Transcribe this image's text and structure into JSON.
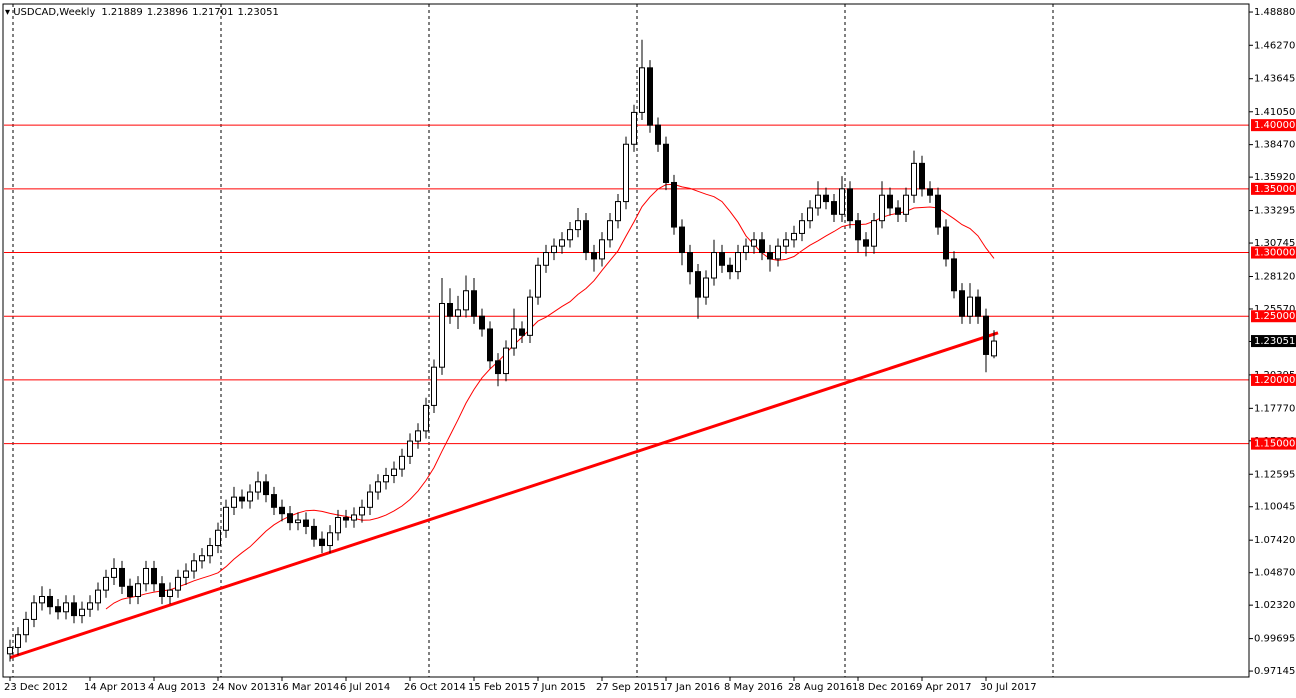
{
  "chart_data": {
    "type": "candlestick",
    "title": "USDCAD,Weekly",
    "ylim": [
      0.9668,
      1.4951
    ],
    "yticks": [
      {
        "value": 1.4888,
        "label": "1.48880"
      },
      {
        "value": 1.4627,
        "label": "1.46270"
      },
      {
        "value": 1.43645,
        "label": "1.43645"
      },
      {
        "value": 1.4105,
        "label": "1.41050"
      },
      {
        "value": 1.3847,
        "label": "1.38470"
      },
      {
        "value": 1.3592,
        "label": "1.35920"
      },
      {
        "value": 1.33295,
        "label": "1.33295"
      },
      {
        "value": 1.30745,
        "label": "1.30745"
      },
      {
        "value": 1.2812,
        "label": "1.28120"
      },
      {
        "value": 1.2557,
        "label": "1.25570"
      },
      {
        "value": 1.2302,
        "label": "1.23020"
      },
      {
        "value": 1.20395,
        "label": "1.20395"
      },
      {
        "value": 1.1777,
        "label": "1.17770"
      },
      {
        "value": 1.1522,
        "label": "1.15220"
      },
      {
        "value": 1.12595,
        "label": "1.12595"
      },
      {
        "value": 1.10045,
        "label": "1.10045"
      },
      {
        "value": 1.0742,
        "label": "1.07420"
      },
      {
        "value": 1.0487,
        "label": "1.04870"
      },
      {
        "value": 1.0232,
        "label": "1.02320"
      },
      {
        "value": 0.99695,
        "label": "0.99695"
      },
      {
        "value": 0.97145,
        "label": "0.97145"
      }
    ],
    "levels": [
      {
        "value": 1.4,
        "label": "1.40000"
      },
      {
        "value": 1.35,
        "label": "1.35000"
      },
      {
        "value": 1.3,
        "label": "1.30000"
      },
      {
        "value": 1.25,
        "label": "1.25000"
      },
      {
        "value": 1.2,
        "label": "1.20000"
      },
      {
        "value": 1.15,
        "label": "1.15000"
      }
    ],
    "level_color": "#ff0000",
    "trendline": {
      "values": [
        0.982,
        1.237
      ],
      "color": "#ff0000"
    },
    "ma_period": 13,
    "ma_color": "#ff0000",
    "categories": [
      "23 Dec 2012",
      null,
      null,
      null,
      null,
      null,
      null,
      null,
      null,
      null,
      "14 Apr 2013",
      null,
      null,
      null,
      null,
      null,
      null,
      null,
      "4 Aug 2013",
      null,
      null,
      null,
      null,
      null,
      null,
      null,
      "24 Nov 2013",
      null,
      null,
      null,
      null,
      null,
      null,
      null,
      "16 Mar 2014",
      null,
      null,
      null,
      null,
      null,
      null,
      null,
      "6 Jul 2014",
      null,
      null,
      null,
      null,
      null,
      null,
      null,
      "26 Oct 2014",
      null,
      null,
      null,
      null,
      null,
      null,
      null,
      "15 Feb 2015",
      null,
      null,
      null,
      null,
      null,
      null,
      null,
      "7 Jun 2015",
      null,
      null,
      null,
      null,
      null,
      null,
      null,
      "27 Sep 2015",
      null,
      null,
      null,
      null,
      null,
      null,
      null,
      "17 Jan 2016",
      null,
      null,
      null,
      null,
      null,
      null,
      null,
      "8 May 2016",
      null,
      null,
      null,
      null,
      null,
      null,
      null,
      "28 Aug 2016",
      null,
      null,
      null,
      null,
      null,
      null,
      null,
      "18 Dec 2016",
      null,
      null,
      null,
      null,
      null,
      null,
      null,
      "9 Apr 2017",
      null,
      null,
      null,
      null,
      null,
      null,
      null,
      "30 Jul 2017",
      null
    ],
    "candles": [
      [
        0.985,
        0.996,
        0.979,
        0.99
      ],
      [
        0.99,
        1.006,
        0.984,
        1.0
      ],
      [
        1.0,
        1.018,
        0.994,
        1.012
      ],
      [
        1.012,
        1.031,
        1.006,
        1.025
      ],
      [
        1.025,
        1.038,
        1.019,
        1.03
      ],
      [
        1.03,
        1.036,
        1.016,
        1.022
      ],
      [
        1.022,
        1.028,
        1.012,
        1.018
      ],
      [
        1.018,
        1.031,
        1.012,
        1.025
      ],
      [
        1.025,
        1.031,
        1.009,
        1.015
      ],
      [
        1.015,
        1.026,
        1.009,
        1.02
      ],
      [
        1.02,
        1.031,
        1.014,
        1.025
      ],
      [
        1.025,
        1.041,
        1.019,
        1.035
      ],
      [
        1.035,
        1.051,
        1.029,
        1.045
      ],
      [
        1.045,
        1.06,
        1.039,
        1.052
      ],
      [
        1.052,
        1.058,
        1.032,
        1.038
      ],
      [
        1.038,
        1.044,
        1.024,
        1.03
      ],
      [
        1.03,
        1.046,
        1.024,
        1.04
      ],
      [
        1.04,
        1.058,
        1.034,
        1.052
      ],
      [
        1.052,
        1.058,
        1.034,
        1.04
      ],
      [
        1.04,
        1.046,
        1.024,
        1.03
      ],
      [
        1.03,
        1.041,
        1.024,
        1.035
      ],
      [
        1.035,
        1.051,
        1.029,
        1.045
      ],
      [
        1.045,
        1.056,
        1.039,
        1.05
      ],
      [
        1.05,
        1.064,
        1.044,
        1.058
      ],
      [
        1.058,
        1.068,
        1.052,
        1.062
      ],
      [
        1.062,
        1.076,
        1.056,
        1.07
      ],
      [
        1.07,
        1.088,
        1.064,
        1.082
      ],
      [
        1.082,
        1.106,
        1.076,
        1.1
      ],
      [
        1.1,
        1.116,
        1.094,
        1.108
      ],
      [
        1.108,
        1.114,
        1.099,
        1.105
      ],
      [
        1.105,
        1.118,
        1.099,
        1.112
      ],
      [
        1.112,
        1.128,
        1.106,
        1.12
      ],
      [
        1.12,
        1.126,
        1.104,
        1.11
      ],
      [
        1.11,
        1.116,
        1.094,
        1.1
      ],
      [
        1.1,
        1.106,
        1.089,
        1.095
      ],
      [
        1.095,
        1.101,
        1.082,
        1.088
      ],
      [
        1.088,
        1.096,
        1.082,
        1.09
      ],
      [
        1.09,
        1.096,
        1.079,
        1.085
      ],
      [
        1.085,
        1.091,
        1.069,
        1.075
      ],
      [
        1.075,
        1.081,
        1.064,
        1.07
      ],
      [
        1.07,
        1.086,
        1.064,
        1.08
      ],
      [
        1.08,
        1.098,
        1.074,
        1.092
      ],
      [
        1.092,
        1.098,
        1.084,
        1.09
      ],
      [
        1.09,
        1.1,
        1.084,
        1.094
      ],
      [
        1.094,
        1.106,
        1.088,
        1.1
      ],
      [
        1.1,
        1.118,
        1.094,
        1.112
      ],
      [
        1.112,
        1.126,
        1.106,
        1.12
      ],
      [
        1.12,
        1.131,
        1.114,
        1.125
      ],
      [
        1.125,
        1.136,
        1.119,
        1.13
      ],
      [
        1.13,
        1.146,
        1.124,
        1.14
      ],
      [
        1.14,
        1.158,
        1.134,
        1.152
      ],
      [
        1.152,
        1.166,
        1.146,
        1.16
      ],
      [
        1.16,
        1.186,
        1.154,
        1.18
      ],
      [
        1.18,
        1.216,
        1.174,
        1.21
      ],
      [
        1.21,
        1.28,
        1.204,
        1.26
      ],
      [
        1.26,
        1.272,
        1.244,
        1.25
      ],
      [
        1.25,
        1.266,
        1.24,
        1.255
      ],
      [
        1.255,
        1.282,
        1.249,
        1.27
      ],
      [
        1.27,
        1.28,
        1.244,
        1.25
      ],
      [
        1.25,
        1.256,
        1.234,
        1.24
      ],
      [
        1.24,
        1.246,
        1.209,
        1.215
      ],
      [
        1.215,
        1.221,
        1.195,
        1.205
      ],
      [
        1.205,
        1.231,
        1.199,
        1.225
      ],
      [
        1.225,
        1.256,
        1.219,
        1.24
      ],
      [
        1.24,
        1.246,
        1.229,
        1.235
      ],
      [
        1.235,
        1.271,
        1.229,
        1.265
      ],
      [
        1.265,
        1.296,
        1.259,
        1.29
      ],
      [
        1.29,
        1.306,
        1.284,
        1.3
      ],
      [
        1.3,
        1.311,
        1.294,
        1.305
      ],
      [
        1.305,
        1.316,
        1.299,
        1.31
      ],
      [
        1.31,
        1.324,
        1.304,
        1.318
      ],
      [
        1.318,
        1.335,
        1.312,
        1.325
      ],
      [
        1.325,
        1.331,
        1.294,
        1.3
      ],
      [
        1.3,
        1.306,
        1.285,
        1.295
      ],
      [
        1.295,
        1.316,
        1.289,
        1.31
      ],
      [
        1.31,
        1.331,
        1.304,
        1.325
      ],
      [
        1.325,
        1.346,
        1.319,
        1.34
      ],
      [
        1.34,
        1.391,
        1.334,
        1.385
      ],
      [
        1.385,
        1.416,
        1.379,
        1.41
      ],
      [
        1.41,
        1.467,
        1.404,
        1.445
      ],
      [
        1.445,
        1.451,
        1.394,
        1.4
      ],
      [
        1.4,
        1.406,
        1.379,
        1.385
      ],
      [
        1.385,
        1.391,
        1.349,
        1.355
      ],
      [
        1.355,
        1.361,
        1.314,
        1.32
      ],
      [
        1.32,
        1.326,
        1.29,
        1.3
      ],
      [
        1.3,
        1.306,
        1.275,
        1.285
      ],
      [
        1.285,
        1.291,
        1.248,
        1.265
      ],
      [
        1.265,
        1.286,
        1.259,
        1.28
      ],
      [
        1.28,
        1.31,
        1.274,
        1.3
      ],
      [
        1.3,
        1.306,
        1.284,
        1.29
      ],
      [
        1.29,
        1.296,
        1.279,
        1.285
      ],
      [
        1.285,
        1.306,
        1.279,
        1.3
      ],
      [
        1.3,
        1.311,
        1.294,
        1.305
      ],
      [
        1.305,
        1.316,
        1.299,
        1.31
      ],
      [
        1.31,
        1.316,
        1.294,
        1.3
      ],
      [
        1.3,
        1.306,
        1.285,
        1.295
      ],
      [
        1.295,
        1.311,
        1.289,
        1.305
      ],
      [
        1.305,
        1.316,
        1.299,
        1.31
      ],
      [
        1.31,
        1.321,
        1.304,
        1.315
      ],
      [
        1.315,
        1.331,
        1.309,
        1.325
      ],
      [
        1.325,
        1.341,
        1.319,
        1.335
      ],
      [
        1.335,
        1.356,
        1.329,
        1.345
      ],
      [
        1.345,
        1.351,
        1.334,
        1.34
      ],
      [
        1.34,
        1.346,
        1.324,
        1.33
      ],
      [
        1.33,
        1.36,
        1.324,
        1.35
      ],
      [
        1.35,
        1.356,
        1.319,
        1.325
      ],
      [
        1.325,
        1.331,
        1.3,
        1.31
      ],
      [
        1.31,
        1.316,
        1.297,
        1.305
      ],
      [
        1.305,
        1.331,
        1.299,
        1.325
      ],
      [
        1.325,
        1.356,
        1.319,
        1.345
      ],
      [
        1.345,
        1.351,
        1.329,
        1.335
      ],
      [
        1.335,
        1.341,
        1.324,
        1.33
      ],
      [
        1.33,
        1.351,
        1.324,
        1.345
      ],
      [
        1.345,
        1.38,
        1.339,
        1.37
      ],
      [
        1.37,
        1.376,
        1.344,
        1.35
      ],
      [
        1.35,
        1.356,
        1.339,
        1.345
      ],
      [
        1.345,
        1.351,
        1.314,
        1.32
      ],
      [
        1.32,
        1.326,
        1.289,
        1.295
      ],
      [
        1.295,
        1.301,
        1.264,
        1.27
      ],
      [
        1.27,
        1.276,
        1.244,
        1.25
      ],
      [
        1.25,
        1.276,
        1.244,
        1.265
      ],
      [
        1.265,
        1.271,
        1.244,
        1.25
      ],
      [
        1.25,
        1.256,
        1.206,
        1.22
      ],
      [
        1.21889,
        1.23896,
        1.21701,
        1.23051
      ]
    ]
  }
}
